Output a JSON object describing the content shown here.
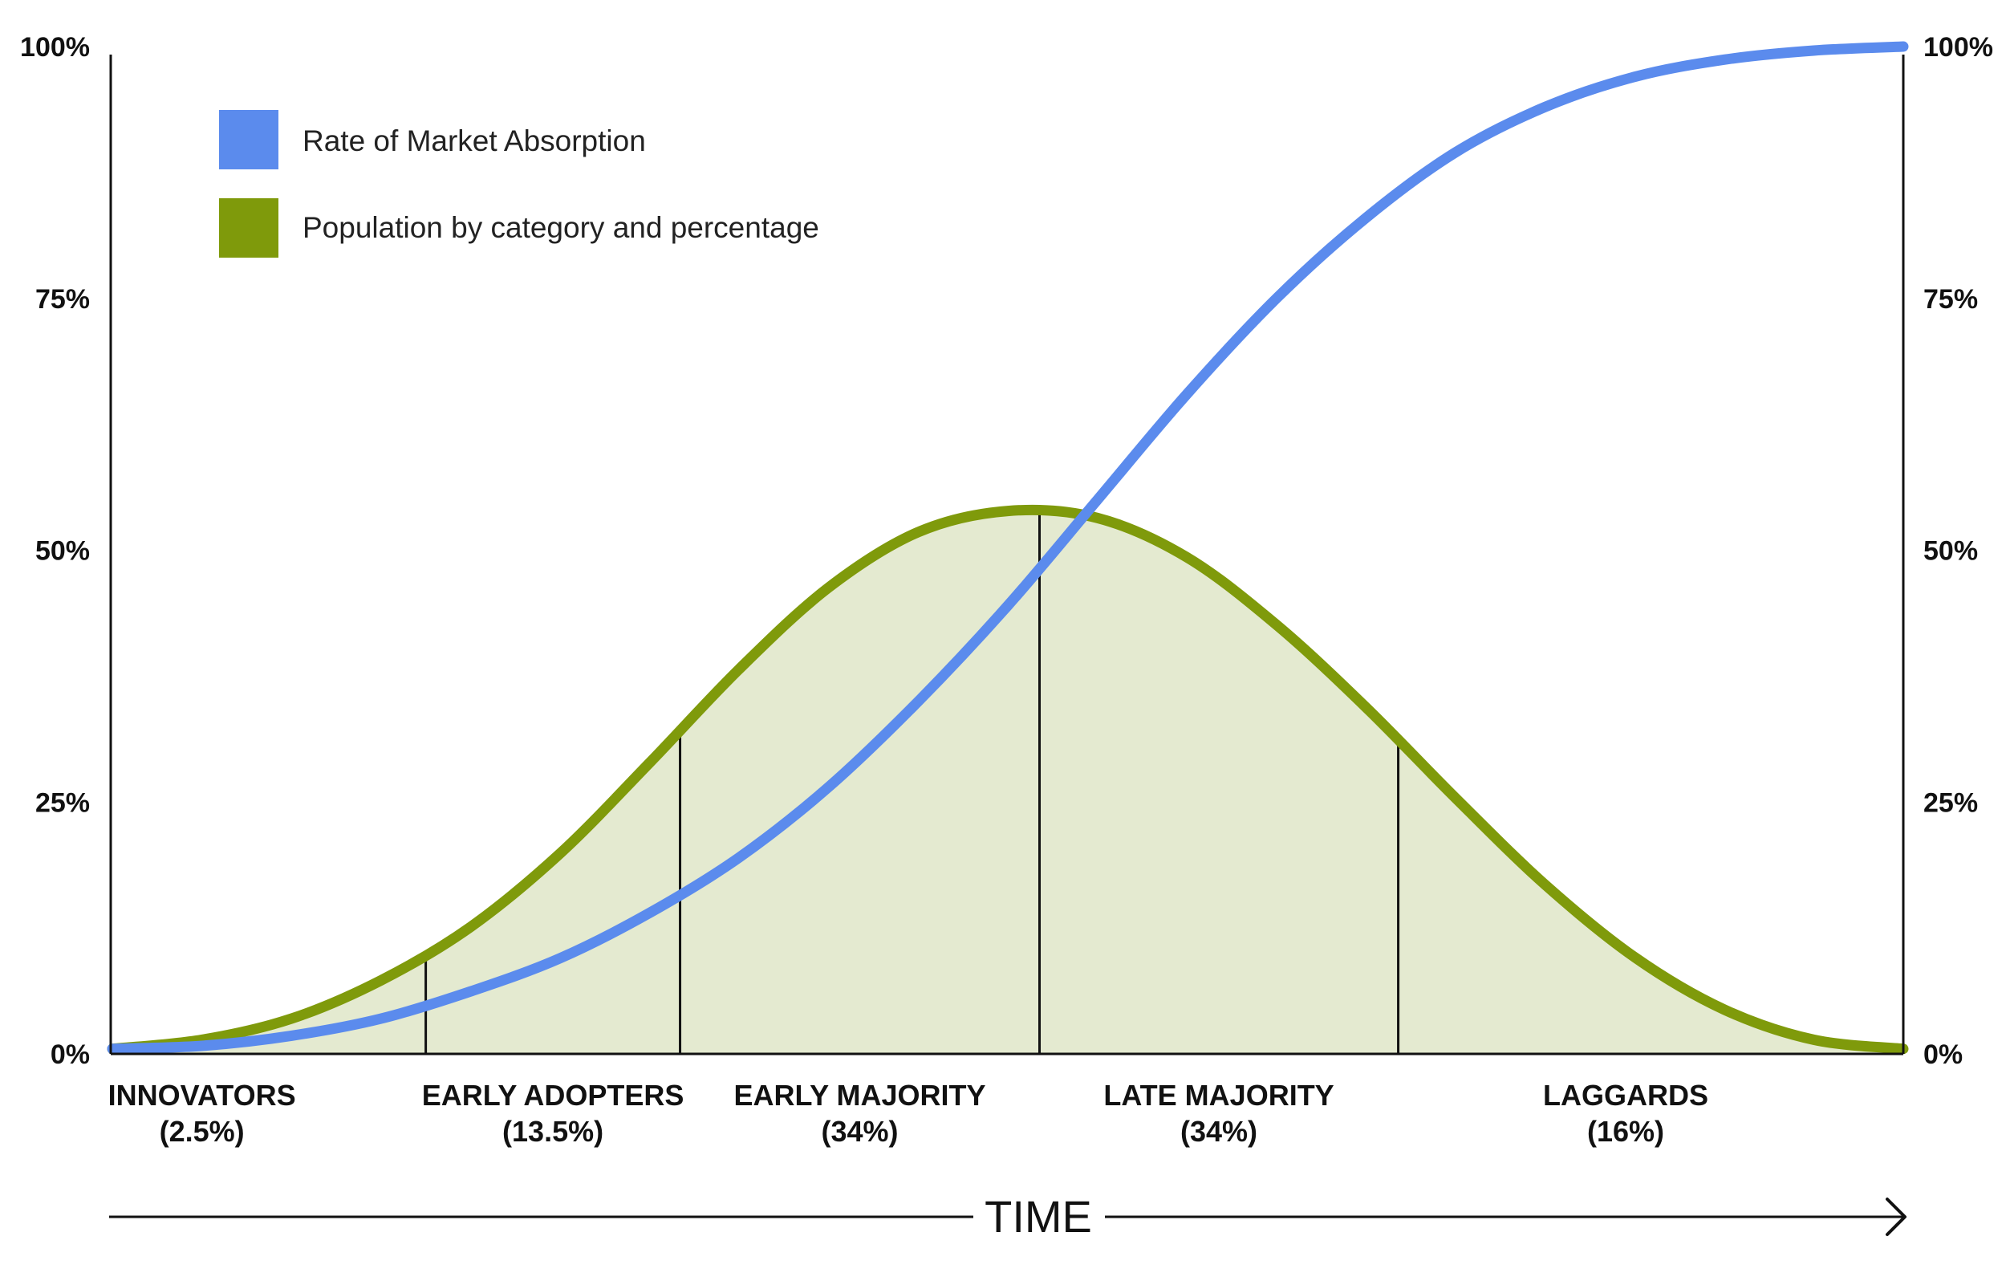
{
  "chart_data": {
    "type": "line",
    "x_axis_label": "TIME",
    "y_ticks": [
      "0%",
      "25%",
      "50%",
      "75%",
      "100%"
    ],
    "y_tick_values": [
      0,
      25,
      50,
      75,
      100
    ],
    "ylim": [
      0,
      100
    ],
    "grid": false,
    "legend_position": "top-left",
    "legend": [
      {
        "label": "Rate of Market Absorption",
        "color": "#5b8bed"
      },
      {
        "label": "Population by category and percentage",
        "color": "#7f9a0b"
      }
    ],
    "categories": [
      {
        "name": "INNOVATORS",
        "share": "(2.5%)"
      },
      {
        "name": "EARLY ADOPTERS",
        "share": "(13.5%)"
      },
      {
        "name": "EARLY MAJORITY",
        "share": "(34%)"
      },
      {
        "name": "LATE MAJORITY",
        "share": "(34%)"
      },
      {
        "name": "LAGGARDS",
        "share": "(16%)"
      }
    ],
    "category_boundaries": [
      0.175,
      0.317,
      0.5177,
      0.718
    ],
    "series": [
      {
        "name": "Rate of Market Absorption",
        "color": "#5b8bed",
        "x": [
          0,
          0.05,
          0.1,
          0.15,
          0.2,
          0.25,
          0.3,
          0.35,
          0.4,
          0.45,
          0.5,
          0.55,
          0.6,
          0.65,
          0.7,
          0.75,
          0.8,
          0.85,
          0.9,
          0.95,
          1.0
        ],
        "values": [
          0.5,
          0.8,
          1.8,
          3.5,
          6.2,
          9.5,
          14,
          19.5,
          26.5,
          35,
          44.5,
          55,
          65.5,
          75,
          83,
          89.5,
          94,
          97,
          98.7,
          99.6,
          100
        ]
      },
      {
        "name": "Population by category and percentage",
        "color": "#7f9a0b",
        "fill": "#e4ead0",
        "x": [
          0,
          0.05,
          0.1,
          0.15,
          0.2,
          0.25,
          0.3,
          0.35,
          0.4,
          0.45,
          0.5,
          0.55,
          0.6,
          0.65,
          0.7,
          0.75,
          0.8,
          0.85,
          0.9,
          0.95,
          1.0
        ],
        "values": [
          0.5,
          1.4,
          3.5,
          7.3,
          12.6,
          19.9,
          28.9,
          38.2,
          46.3,
          51.8,
          53.9,
          53.2,
          49.3,
          42.6,
          34.4,
          25.4,
          16.8,
          9.6,
          4.4,
          1.4,
          0.5
        ]
      }
    ]
  }
}
